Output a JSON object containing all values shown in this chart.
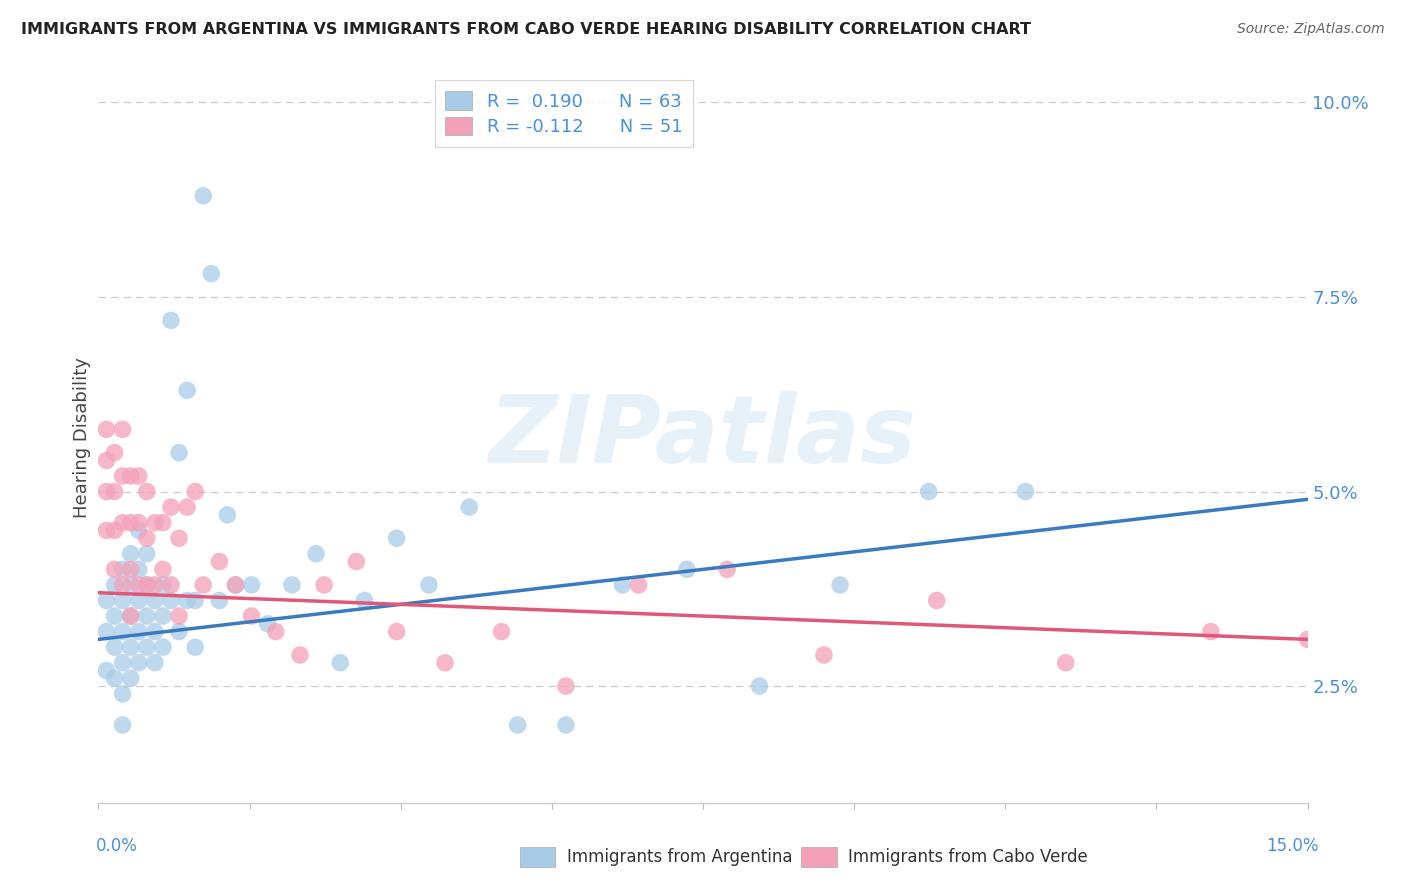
{
  "title": "IMMIGRANTS FROM ARGENTINA VS IMMIGRANTS FROM CABO VERDE HEARING DISABILITY CORRELATION CHART",
  "source": "Source: ZipAtlas.com",
  "ylabel": "Hearing Disability",
  "color_blue": "#a8cce8",
  "color_pink": "#f4a0b8",
  "color_blue_line": "#3a7abf",
  "color_pink_line": "#e05878",
  "color_grid": "#cccccc",
  "color_title": "#222222",
  "color_source": "#666666",
  "color_axis_blue": "#4a90d9",
  "xmin": 0.0,
  "xmax": 0.15,
  "ymin": 0.01,
  "ymax": 0.104,
  "r_blue": 0.19,
  "n_blue": 63,
  "r_pink": -0.112,
  "n_pink": 51,
  "arg_trend_x0": 0.0,
  "arg_trend_y0": 0.031,
  "arg_trend_x1": 0.15,
  "arg_trend_y1": 0.049,
  "cv_trend_x0": 0.0,
  "cv_trend_y0": 0.037,
  "cv_trend_x1": 0.15,
  "cv_trend_y1": 0.031,
  "argentina_x": [
    0.001,
    0.001,
    0.001,
    0.002,
    0.002,
    0.002,
    0.002,
    0.003,
    0.003,
    0.003,
    0.003,
    0.003,
    0.003,
    0.004,
    0.004,
    0.004,
    0.004,
    0.004,
    0.005,
    0.005,
    0.005,
    0.005,
    0.005,
    0.006,
    0.006,
    0.006,
    0.006,
    0.007,
    0.007,
    0.007,
    0.008,
    0.008,
    0.008,
    0.009,
    0.009,
    0.01,
    0.01,
    0.011,
    0.011,
    0.012,
    0.012,
    0.013,
    0.014,
    0.015,
    0.016,
    0.017,
    0.019,
    0.021,
    0.024,
    0.027,
    0.03,
    0.033,
    0.037,
    0.041,
    0.046,
    0.052,
    0.058,
    0.065,
    0.073,
    0.082,
    0.092,
    0.103,
    0.115
  ],
  "argentina_y": [
    0.036,
    0.032,
    0.027,
    0.038,
    0.034,
    0.03,
    0.026,
    0.04,
    0.036,
    0.032,
    0.028,
    0.024,
    0.02,
    0.042,
    0.038,
    0.034,
    0.03,
    0.026,
    0.045,
    0.04,
    0.036,
    0.032,
    0.028,
    0.042,
    0.038,
    0.034,
    0.03,
    0.036,
    0.032,
    0.028,
    0.038,
    0.034,
    0.03,
    0.072,
    0.036,
    0.055,
    0.032,
    0.063,
    0.036,
    0.036,
    0.03,
    0.088,
    0.078,
    0.036,
    0.047,
    0.038,
    0.038,
    0.033,
    0.038,
    0.042,
    0.028,
    0.036,
    0.044,
    0.038,
    0.048,
    0.02,
    0.02,
    0.038,
    0.04,
    0.025,
    0.038,
    0.05,
    0.05
  ],
  "caboverde_x": [
    0.001,
    0.001,
    0.001,
    0.001,
    0.002,
    0.002,
    0.002,
    0.002,
    0.003,
    0.003,
    0.003,
    0.003,
    0.004,
    0.004,
    0.004,
    0.004,
    0.005,
    0.005,
    0.005,
    0.006,
    0.006,
    0.006,
    0.007,
    0.007,
    0.008,
    0.008,
    0.009,
    0.009,
    0.01,
    0.01,
    0.011,
    0.012,
    0.013,
    0.015,
    0.017,
    0.019,
    0.022,
    0.025,
    0.028,
    0.032,
    0.037,
    0.043,
    0.05,
    0.058,
    0.067,
    0.078,
    0.09,
    0.104,
    0.12,
    0.138,
    0.15
  ],
  "caboverde_y": [
    0.058,
    0.054,
    0.05,
    0.045,
    0.055,
    0.05,
    0.045,
    0.04,
    0.058,
    0.052,
    0.046,
    0.038,
    0.052,
    0.046,
    0.04,
    0.034,
    0.052,
    0.046,
    0.038,
    0.05,
    0.044,
    0.038,
    0.046,
    0.038,
    0.046,
    0.04,
    0.048,
    0.038,
    0.044,
    0.034,
    0.048,
    0.05,
    0.038,
    0.041,
    0.038,
    0.034,
    0.032,
    0.029,
    0.038,
    0.041,
    0.032,
    0.028,
    0.032,
    0.025,
    0.038,
    0.04,
    0.029,
    0.036,
    0.028,
    0.032,
    0.031
  ]
}
